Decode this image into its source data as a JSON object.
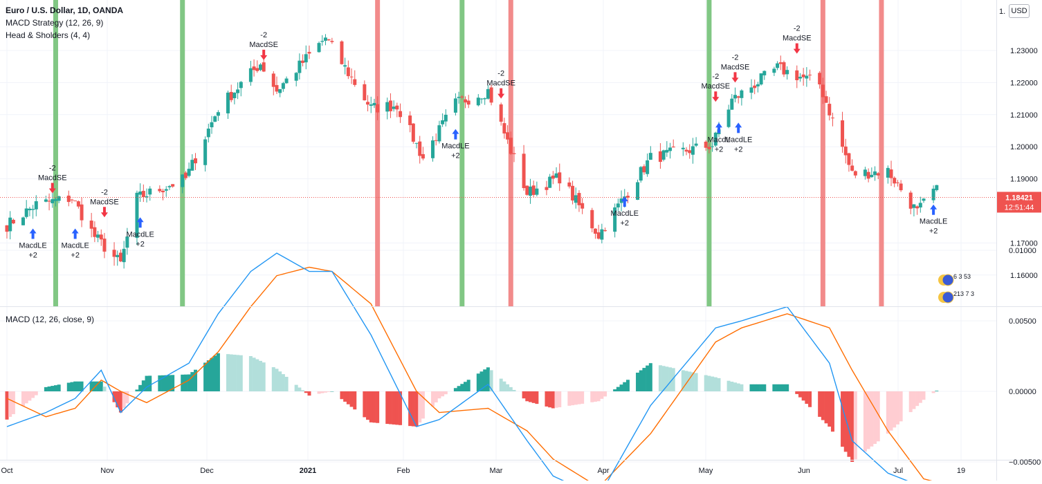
{
  "legend": {
    "symbol": "Euro / U.S. Dollar, 1D, OANDA",
    "strategy": "MACD Strategy (12, 26, 9)",
    "pattern": "Head & Sholders (4, 4)",
    "macd_title": "MACD (12, 26, close, 9)"
  },
  "currency_badge": "USD",
  "last_price": {
    "value": "1.18421",
    "countdown": "12:51:44"
  },
  "colors": {
    "up": "#26a69a",
    "down": "#ef5350",
    "green_band": "#81c784",
    "red_band": "#f28b8b",
    "macd_line": "#2196f3",
    "signal_line": "#ff6d00",
    "hist_up_strong": "#26a69a",
    "hist_up_weak": "#b2dfdb",
    "hist_down_strong": "#ef5350",
    "hist_down_weak": "#ffcdd2",
    "arrow_up": "#2962ff",
    "arrow_down": "#f23645"
  },
  "flag_labels": [
    "6 3 53",
    "213 7 3"
  ],
  "chart_data": {
    "type": "candlestick",
    "price_axis": {
      "ticks": [
        "1.23000",
        "1.22000",
        "1.21000",
        "1.20000",
        "1.19000",
        "1.17000",
        "1.16000"
      ],
      "tick_values": [
        1.23,
        1.22,
        1.21,
        1.2,
        1.19,
        1.17,
        1.16
      ],
      "top_cut_label": "1."
    },
    "macd_axis": {
      "ticks": [
        "0.01000",
        "0.00500",
        "0.00000",
        "−0.00500"
      ],
      "tick_values": [
        0.01,
        0.005,
        0,
        -0.005
      ]
    },
    "time_axis": [
      "Oct",
      "Nov",
      "Dec",
      "2021",
      "Feb",
      "Mar",
      "Apr",
      "May",
      "Jun",
      "Jul",
      "19"
    ],
    "anchors": [
      [
        "2020-09-30",
        1.1755
      ],
      [
        "2020-10-09",
        1.182
      ],
      [
        "2020-10-20",
        1.184
      ],
      [
        "2020-10-27",
        1.172
      ],
      [
        "2020-11-04",
        1.1635
      ],
      [
        "2020-11-09",
        1.184
      ],
      [
        "2020-11-24",
        1.19
      ],
      [
        "2020-12-04",
        1.212
      ],
      [
        "2020-12-17",
        1.226
      ],
      [
        "2020-12-22",
        1.2175
      ],
      [
        "2021-01-06",
        1.234
      ],
      [
        "2021-01-20",
        1.212
      ],
      [
        "2021-01-28",
        1.213
      ],
      [
        "2021-02-05",
        1.1965
      ],
      [
        "2021-02-15",
        1.2135
      ],
      [
        "2021-02-25",
        1.2175
      ],
      [
        "2021-03-09",
        1.1855
      ],
      [
        "2021-03-19",
        1.1905
      ],
      [
        "2021-03-31",
        1.1725
      ],
      [
        "2021-04-16",
        1.1965
      ],
      [
        "2021-05-05",
        1.2005
      ],
      [
        "2021-05-11",
        1.2145
      ],
      [
        "2021-05-25",
        1.2245
      ],
      [
        "2021-06-07",
        1.2195
      ],
      [
        "2021-06-17",
        1.1915
      ],
      [
        "2021-06-28",
        1.1925
      ],
      [
        "2021-07-07",
        1.1795
      ],
      [
        "2021-07-12",
        1.1862
      ]
    ],
    "band_dates": {
      "green": [
        "2020-10-15",
        "2020-11-23",
        "2021-02-17",
        "2021-05-04"
      ],
      "red": [
        "2021-01-22",
        "2021-03-04",
        "2021-06-08",
        "2021-06-26"
      ]
    },
    "signals": [
      {
        "date": "2020-10-08",
        "dir": "long",
        "price": 1.1745,
        "label": "MacdLE",
        "qty": "+2"
      },
      {
        "date": "2020-10-14",
        "dir": "short",
        "price": 1.1855,
        "label": "MacdSE",
        "qty": "-2"
      },
      {
        "date": "2020-10-21",
        "dir": "long",
        "price": 1.1745,
        "label": "MacdLE",
        "qty": "+2"
      },
      {
        "date": "2020-10-30",
        "dir": "short",
        "price": 1.178,
        "label": "MacdSE",
        "qty": "-2"
      },
      {
        "date": "2020-11-10",
        "dir": "long",
        "price": 1.178,
        "label": "MacdLE",
        "qty": "+2"
      },
      {
        "date": "2020-12-18",
        "dir": "short",
        "price": 1.227,
        "label": "MacdSE",
        "qty": "-2"
      },
      {
        "date": "2021-02-15",
        "dir": "long",
        "price": 1.2055,
        "label": "MacdLE",
        "qty": "+2"
      },
      {
        "date": "2021-03-01",
        "dir": "short",
        "price": 1.215,
        "label": "MacdSE",
        "qty": "-2"
      },
      {
        "date": "2021-04-08",
        "dir": "long",
        "price": 1.1845,
        "label": "MacdLE",
        "qty": "+2"
      },
      {
        "date": "2021-05-06",
        "dir": "short",
        "price": 1.214,
        "label": "MacdSE",
        "qty": "-2"
      },
      {
        "date": "2021-05-07",
        "dir": "long",
        "price": 1.2075,
        "label": "MacdL",
        "qty": "+2"
      },
      {
        "date": "2021-05-12",
        "dir": "short",
        "price": 1.22,
        "label": "MacdSE",
        "qty": "-2"
      },
      {
        "date": "2021-05-13",
        "dir": "long",
        "price": 1.2075,
        "label": "MacdLE",
        "qty": "+2"
      },
      {
        "date": "2021-05-31",
        "dir": "short",
        "price": 1.229,
        "label": "MacdSE",
        "qty": "-2"
      },
      {
        "date": "2021-07-12",
        "dir": "long",
        "price": 1.182,
        "label": "MacdLE",
        "qty": "+2"
      }
    ],
    "macd_anchors": [
      [
        "2020-09-30",
        -0.0025,
        -0.0005
      ],
      [
        "2020-10-12",
        -0.0015,
        -0.0018
      ],
      [
        "2020-10-21",
        -0.0005,
        -0.0012
      ],
      [
        "2020-10-29",
        0.0015,
        0.0008
      ],
      [
        "2020-11-04",
        -0.0015,
        0.0
      ],
      [
        "2020-11-12",
        0.0003,
        -0.0008
      ],
      [
        "2020-11-25",
        0.002,
        0.0008
      ],
      [
        "2020-12-04",
        0.0055,
        0.0028
      ],
      [
        "2020-12-14",
        0.0085,
        0.006
      ],
      [
        "2020-12-22",
        0.0098,
        0.0082
      ],
      [
        "2021-01-01",
        0.0085,
        0.0088
      ],
      [
        "2021-01-08",
        0.0085,
        0.0085
      ],
      [
        "2021-01-20",
        0.004,
        0.0062
      ],
      [
        "2021-02-03",
        -0.0025,
        0.0
      ],
      [
        "2021-02-10",
        -0.002,
        -0.0015
      ],
      [
        "2021-02-25",
        0.0005,
        -0.0012
      ],
      [
        "2021-03-09",
        -0.0035,
        -0.0028
      ],
      [
        "2021-03-17",
        -0.006,
        -0.0048
      ],
      [
        "2021-03-31",
        -0.0075,
        -0.0068
      ],
      [
        "2021-04-16",
        -0.001,
        -0.003
      ],
      [
        "2021-05-06",
        0.0045,
        0.0035
      ],
      [
        "2021-05-14",
        0.005,
        0.0045
      ],
      [
        "2021-05-28",
        0.006,
        0.0055
      ],
      [
        "2021-06-10",
        0.002,
        0.0045
      ],
      [
        "2021-06-17",
        -0.0035,
        0.0015
      ],
      [
        "2021-06-28",
        -0.0058,
        -0.0028
      ],
      [
        "2021-07-09",
        -0.0068,
        -0.0062
      ],
      [
        "2021-07-14",
        -0.0063,
        -0.0065
      ]
    ]
  }
}
